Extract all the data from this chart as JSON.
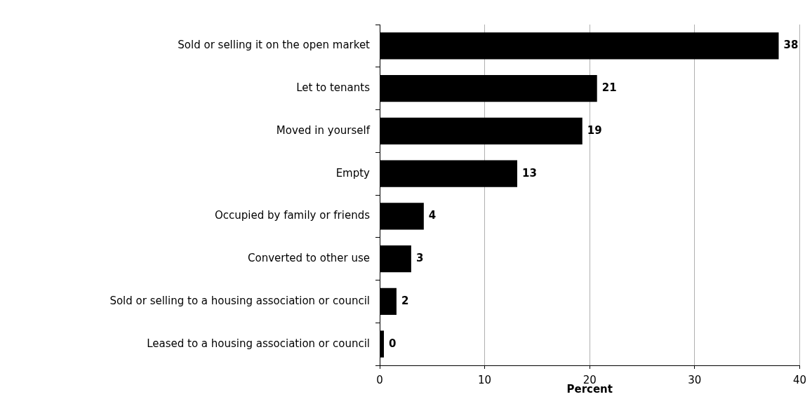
{
  "chart_data": {
    "type": "bar",
    "orientation": "horizontal",
    "xlabel": "Percent",
    "categories": [
      "Sold or selling it on the open market",
      "Let to tenants",
      "Moved in yourself",
      "Empty",
      "Occupied by family or friends",
      "Converted to other use",
      "Sold or selling to a housing association or council",
      "Leased to a housing association or council"
    ],
    "values": [
      38,
      20.7,
      19.3,
      13.1,
      4.2,
      3.0,
      1.6,
      0.4
    ],
    "value_labels": [
      "38",
      "21",
      "19",
      "13",
      "4",
      "3",
      "2",
      "0"
    ],
    "color": "#000000",
    "xlim": [
      0,
      40
    ],
    "xticks": [
      0,
      10,
      20,
      30,
      40
    ],
    "grid": "x",
    "legend": false
  }
}
